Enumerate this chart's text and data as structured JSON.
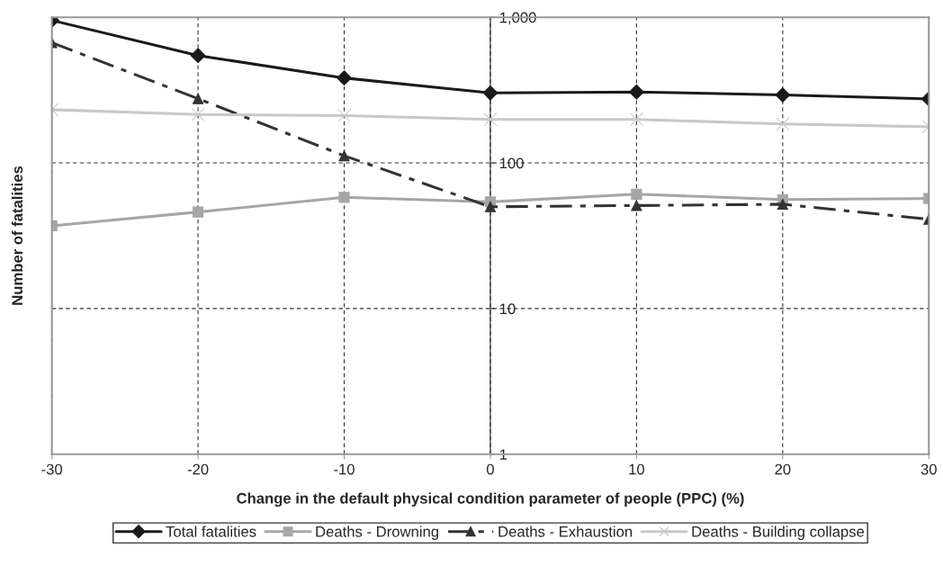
{
  "chart_data": {
    "type": "line",
    "xlabel": "Change in the default physical condition parameter of people (PPC) (%)",
    "ylabel": "Number of fatalities",
    "x": [
      -30,
      -20,
      -10,
      0,
      10,
      20,
      30
    ],
    "series": [
      {
        "name": "Total fatalities",
        "color": "#1a1a1a",
        "marker": "diamond",
        "line_style": "solid",
        "values": [
          952,
          546,
          383,
          302,
          307,
          293,
          275
        ]
      },
      {
        "name": "Deaths - Drowning",
        "color": "#a6a6a6",
        "marker": "square",
        "line_style": "solid",
        "values": [
          37,
          46,
          58,
          54,
          61,
          56,
          57
        ]
      },
      {
        "name": "Deaths - Exhaustion",
        "color": "#333333",
        "marker": "triangle",
        "line_style": "dashdot",
        "values": [
          670,
          276,
          112,
          50,
          51,
          52,
          41
        ]
      },
      {
        "name": "Deaths - Building collapse",
        "color": "#c8c8c8",
        "marker": "cross",
        "line_style": "solid",
        "values": [
          232,
          215,
          211,
          199,
          199,
          185,
          177
        ]
      }
    ],
    "log": true,
    "xlim": [
      -30,
      30
    ],
    "xticks": [
      -30,
      -20,
      -10,
      0,
      10,
      20,
      30
    ],
    "ylim": [
      1,
      1000
    ],
    "yticks": [
      1,
      10,
      100,
      {
        "value": 1000,
        "label": "1,000"
      }
    ],
    "grid": true,
    "legend": "bottom"
  }
}
